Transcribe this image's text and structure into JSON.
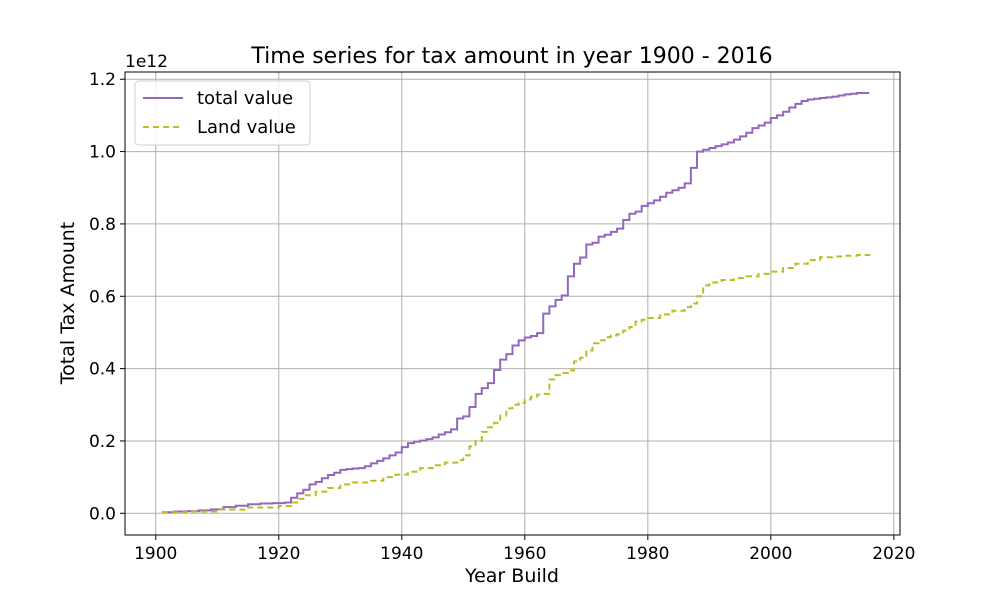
{
  "chart_data": {
    "type": "line",
    "title": "Time series for tax amount in year 1900 - 2016",
    "xlabel": "Year Build",
    "ylabel": "Total Tax Amount",
    "y_offset_label": "1e12",
    "xlim": [
      1895,
      2021
    ],
    "ylim": [
      -0.06,
      1.22
    ],
    "x_ticks": [
      1900,
      1920,
      1940,
      1960,
      1980,
      2000,
      2020
    ],
    "x_tick_labels": [
      "1900",
      "1920",
      "1940",
      "1960",
      "1980",
      "2000",
      "2020"
    ],
    "y_ticks": [
      0.0,
      0.2,
      0.4,
      0.6,
      0.8,
      1.0,
      1.2
    ],
    "y_tick_labels": [
      "0.0",
      "0.2",
      "0.4",
      "0.6",
      "0.8",
      "1.0",
      "1.2"
    ],
    "grid": true,
    "legend_position": "top-left",
    "step": true,
    "series": [
      {
        "name": "total value",
        "color": "#9467bd",
        "dash": "solid",
        "x": [
          1901,
          1903,
          1905,
          1907,
          1909,
          1911,
          1913,
          1915,
          1917,
          1919,
          1921,
          1922,
          1923,
          1924,
          1925,
          1926,
          1927,
          1928,
          1929,
          1930,
          1931,
          1932,
          1933,
          1934,
          1935,
          1936,
          1937,
          1938,
          1939,
          1940,
          1941,
          1942,
          1943,
          1944,
          1945,
          1946,
          1947,
          1948,
          1949,
          1950,
          1951,
          1952,
          1953,
          1954,
          1955,
          1956,
          1957,
          1958,
          1959,
          1960,
          1961,
          1962,
          1963,
          1964,
          1965,
          1966,
          1967,
          1968,
          1969,
          1970,
          1971,
          1972,
          1973,
          1974,
          1975,
          1976,
          1977,
          1978,
          1979,
          1980,
          1981,
          1982,
          1983,
          1984,
          1985,
          1986,
          1987,
          1988,
          1989,
          1990,
          1991,
          1992,
          1993,
          1994,
          1995,
          1996,
          1997,
          1998,
          1999,
          2000,
          2001,
          2002,
          2003,
          2004,
          2005,
          2006,
          2007,
          2008,
          2009,
          2010,
          2011,
          2012,
          2013,
          2014,
          2015,
          2016
        ],
        "values": [
          0.003,
          0.005,
          0.006,
          0.008,
          0.011,
          0.017,
          0.021,
          0.025,
          0.027,
          0.028,
          0.03,
          0.043,
          0.055,
          0.065,
          0.08,
          0.087,
          0.097,
          0.106,
          0.112,
          0.12,
          0.122,
          0.124,
          0.125,
          0.13,
          0.138,
          0.145,
          0.152,
          0.16,
          0.168,
          0.183,
          0.194,
          0.198,
          0.201,
          0.205,
          0.21,
          0.218,
          0.224,
          0.232,
          0.262,
          0.268,
          0.294,
          0.33,
          0.346,
          0.36,
          0.396,
          0.425,
          0.44,
          0.464,
          0.478,
          0.486,
          0.49,
          0.498,
          0.552,
          0.572,
          0.59,
          0.602,
          0.655,
          0.69,
          0.707,
          0.743,
          0.748,
          0.765,
          0.77,
          0.778,
          0.787,
          0.811,
          0.828,
          0.834,
          0.85,
          0.857,
          0.865,
          0.875,
          0.886,
          0.893,
          0.9,
          0.912,
          0.955,
          1.0,
          1.005,
          1.01,
          1.015,
          1.02,
          1.025,
          1.033,
          1.042,
          1.052,
          1.065,
          1.072,
          1.08,
          1.093,
          1.1,
          1.11,
          1.122,
          1.132,
          1.14,
          1.144,
          1.146,
          1.148,
          1.15,
          1.152,
          1.155,
          1.158,
          1.16,
          1.162,
          1.162,
          1.162
        ]
      },
      {
        "name": "Land value",
        "color": "#bcbd22",
        "dash": "dashed",
        "x": [
          1901,
          1905,
          1910,
          1915,
          1920,
          1922,
          1923,
          1924,
          1926,
          1928,
          1930,
          1932,
          1935,
          1937,
          1939,
          1941,
          1943,
          1945,
          1947,
          1949,
          1950,
          1951,
          1952,
          1953,
          1954,
          1955,
          1956,
          1957,
          1958,
          1959,
          1960,
          1961,
          1962,
          1963,
          1964,
          1965,
          1966,
          1967,
          1968,
          1969,
          1970,
          1971,
          1972,
          1973,
          1974,
          1975,
          1976,
          1977,
          1978,
          1979,
          1980,
          1982,
          1984,
          1986,
          1987,
          1988,
          1989,
          1990,
          1992,
          1994,
          1996,
          1998,
          2000,
          2002,
          2004,
          2006,
          2008,
          2010,
          2012,
          2014,
          2016
        ],
        "values": [
          0.003,
          0.005,
          0.01,
          0.016,
          0.02,
          0.03,
          0.04,
          0.05,
          0.06,
          0.07,
          0.08,
          0.085,
          0.09,
          0.1,
          0.107,
          0.115,
          0.125,
          0.133,
          0.14,
          0.147,
          0.16,
          0.185,
          0.2,
          0.225,
          0.238,
          0.25,
          0.27,
          0.29,
          0.3,
          0.305,
          0.315,
          0.322,
          0.328,
          0.33,
          0.37,
          0.382,
          0.388,
          0.395,
          0.42,
          0.43,
          0.45,
          0.47,
          0.478,
          0.487,
          0.492,
          0.495,
          0.505,
          0.515,
          0.53,
          0.535,
          0.54,
          0.55,
          0.56,
          0.57,
          0.58,
          0.6,
          0.63,
          0.638,
          0.645,
          0.65,
          0.655,
          0.662,
          0.668,
          0.678,
          0.69,
          0.7,
          0.708,
          0.71,
          0.712,
          0.714,
          0.716
        ]
      }
    ]
  }
}
